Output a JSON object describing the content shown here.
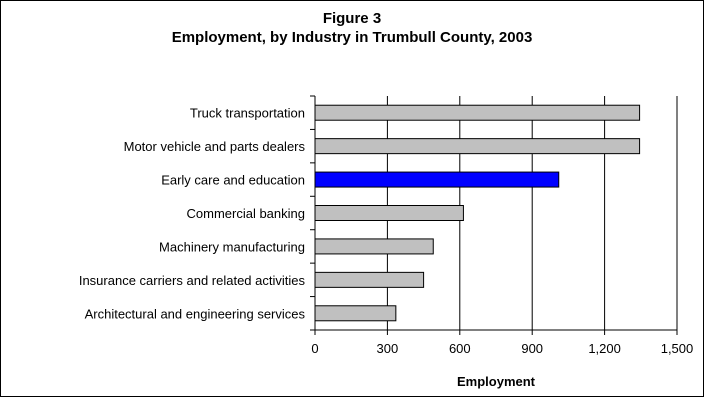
{
  "chart_data": {
    "type": "bar",
    "orientation": "horizontal",
    "title": "Figure 3",
    "subtitle": "Employment, by Industry in Trumbull County, 2003",
    "xlabel": "Employment",
    "ylabel": "",
    "xlim": [
      0,
      1500
    ],
    "xticks": [
      "0",
      "300",
      "600",
      "900",
      "1,200",
      "1,500"
    ],
    "grid": true,
    "categories": [
      "Truck transportation",
      "Motor vehicle and parts dealers",
      "Early care and education",
      "Commercial banking",
      "Machinery manufacturing",
      "Insurance carriers and related activities",
      "Architectural and engineering services"
    ],
    "values": [
      1345,
      1345,
      1010,
      615,
      490,
      450,
      335
    ],
    "highlight_index": 2,
    "colors": {
      "bar": "#c0c0c0",
      "highlight": "#0000ff",
      "grid": "#000000"
    }
  }
}
